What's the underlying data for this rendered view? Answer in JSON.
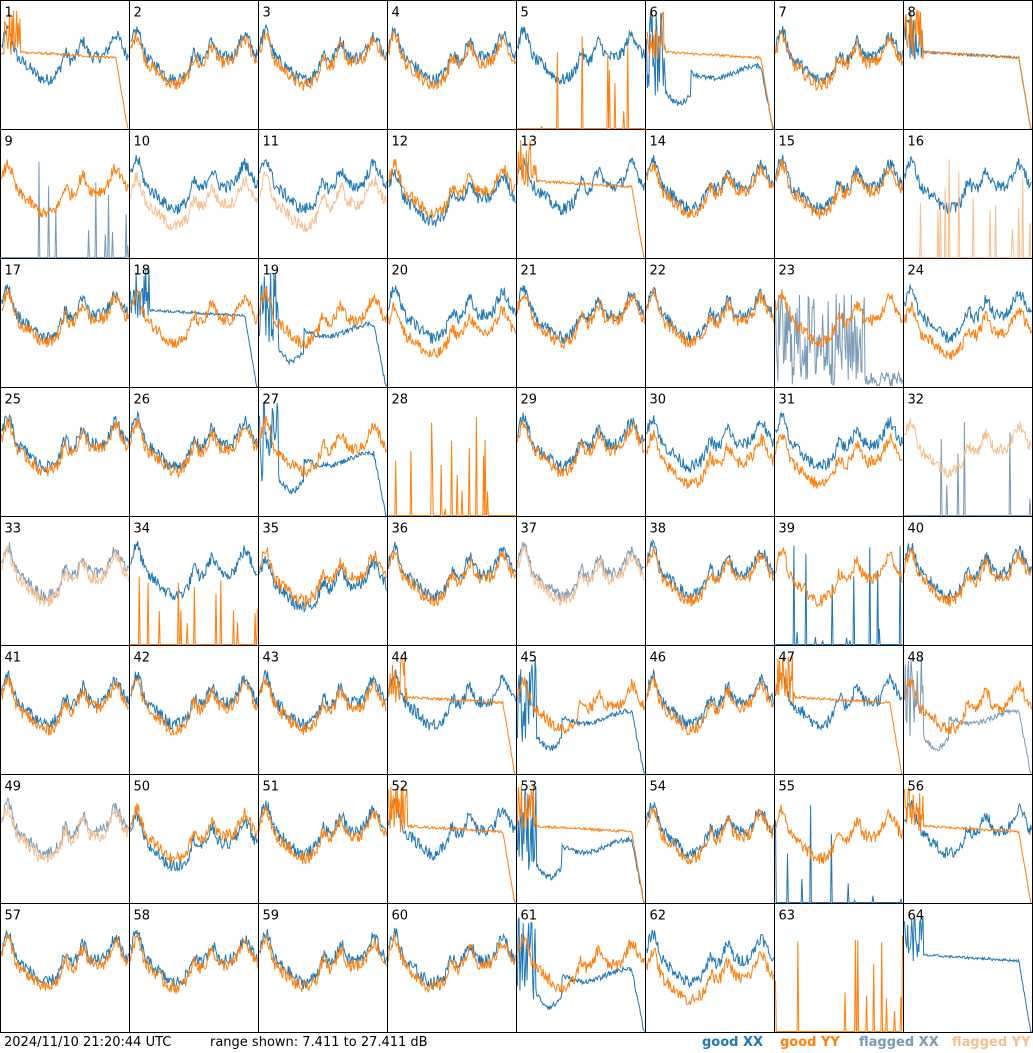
{
  "footer": {
    "timestamp": "2024/11/10 21:20:44 UTC",
    "range": "range shown: 7.411 to 27.411 dB"
  },
  "legend": [
    {
      "label": "good XX",
      "color": "#1f77b4"
    },
    {
      "label": "good YY",
      "color": "#ff7f0e"
    },
    {
      "label": "flagged XX",
      "color": "#7a9ab5"
    },
    {
      "label": "flagged YY",
      "color": "#f7bf8f"
    }
  ],
  "chart_data": {
    "type": "line",
    "ylim_db": [
      7.411,
      27.411
    ],
    "grid_rows": 8,
    "grid_cols": 8,
    "colors": {
      "good_xx": "#1f77b4",
      "good_yy": "#ff7f0e",
      "flagged_xx": "#7a9ab5",
      "flagged_yy": "#f7bf8f"
    },
    "tiles": [
      {
        "label": "1",
        "xx": "norm",
        "yy": "flat",
        "xx_flag": false,
        "yy_flag": false
      },
      {
        "label": "2",
        "xx": "norm",
        "yy": "norm",
        "xx_flag": false,
        "yy_flag": false
      },
      {
        "label": "3",
        "xx": "norm",
        "yy": "norm",
        "xx_flag": false,
        "yy_flag": false
      },
      {
        "label": "4",
        "xx": "norm",
        "yy": "norm",
        "xx_flag": false,
        "yy_flag": false
      },
      {
        "label": "5",
        "xx": "norm",
        "yy": "dead",
        "xx_flag": false,
        "yy_flag": false
      },
      {
        "label": "6",
        "xx": "dip",
        "yy": "flat",
        "xx_flag": false,
        "yy_flag": false
      },
      {
        "label": "7",
        "xx": "norm",
        "yy": "norm",
        "xx_flag": false,
        "yy_flag": false
      },
      {
        "label": "8",
        "xx": "flat",
        "yy": "flat",
        "xx_flag": false,
        "yy_flag": false
      },
      {
        "label": "9",
        "xx": "dead",
        "yy": "norm",
        "xx_flag": true,
        "yy_flag": false
      },
      {
        "label": "10",
        "xx": "norm",
        "yy": "low",
        "xx_flag": false,
        "yy_flag": true
      },
      {
        "label": "11",
        "xx": "norm",
        "yy": "low",
        "xx_flag": false,
        "yy_flag": true
      },
      {
        "label": "12",
        "xx": "low",
        "yy": "norm",
        "xx_flag": false,
        "yy_flag": false
      },
      {
        "label": "13",
        "xx": "norm",
        "yy": "flat",
        "xx_flag": false,
        "yy_flag": false
      },
      {
        "label": "14",
        "xx": "norm",
        "yy": "norm",
        "xx_flag": false,
        "yy_flag": false
      },
      {
        "label": "15",
        "xx": "norm",
        "yy": "norm",
        "xx_flag": false,
        "yy_flag": false
      },
      {
        "label": "16",
        "xx": "norm",
        "yy": "dead",
        "xx_flag": false,
        "yy_flag": true
      },
      {
        "label": "17",
        "xx": "norm",
        "yy": "norm",
        "xx_flag": false,
        "yy_flag": false
      },
      {
        "label": "18",
        "xx": "flat",
        "yy": "norm",
        "xx_flag": false,
        "yy_flag": false
      },
      {
        "label": "19",
        "xx": "dip",
        "yy": "norm",
        "xx_flag": false,
        "yy_flag": false
      },
      {
        "label": "20",
        "xx": "norm",
        "yy": "low",
        "xx_flag": false,
        "yy_flag": false
      },
      {
        "label": "21",
        "xx": "norm",
        "yy": "norm",
        "xx_flag": false,
        "yy_flag": false
      },
      {
        "label": "22",
        "xx": "norm",
        "yy": "norm",
        "xx_flag": false,
        "yy_flag": false
      },
      {
        "label": "23",
        "xx": "noisy",
        "yy": "norm",
        "xx_flag": true,
        "yy_flag": false
      },
      {
        "label": "24",
        "xx": "norm",
        "yy": "low",
        "xx_flag": false,
        "yy_flag": false
      },
      {
        "label": "25",
        "xx": "norm",
        "yy": "norm",
        "xx_flag": false,
        "yy_flag": false
      },
      {
        "label": "26",
        "xx": "norm",
        "yy": "norm",
        "xx_flag": false,
        "yy_flag": false
      },
      {
        "label": "27",
        "xx": "dip",
        "yy": "norm",
        "xx_flag": false,
        "yy_flag": false
      },
      {
        "label": "28",
        "xx": "none",
        "yy": "dead",
        "xx_flag": false,
        "yy_flag": false
      },
      {
        "label": "29",
        "xx": "norm",
        "yy": "norm",
        "xx_flag": false,
        "yy_flag": false
      },
      {
        "label": "30",
        "xx": "norm",
        "yy": "low",
        "xx_flag": false,
        "yy_flag": false
      },
      {
        "label": "31",
        "xx": "norm",
        "yy": "low",
        "xx_flag": false,
        "yy_flag": false
      },
      {
        "label": "32",
        "xx": "dead",
        "yy": "norm",
        "xx_flag": true,
        "yy_flag": true
      },
      {
        "label": "33",
        "xx": "norm",
        "yy": "norm",
        "xx_flag": true,
        "yy_flag": true
      },
      {
        "label": "34",
        "xx": "norm",
        "yy": "dead",
        "xx_flag": false,
        "yy_flag": false
      },
      {
        "label": "35",
        "xx": "low",
        "yy": "norm",
        "xx_flag": false,
        "yy_flag": false
      },
      {
        "label": "36",
        "xx": "norm",
        "yy": "norm",
        "xx_flag": false,
        "yy_flag": false
      },
      {
        "label": "37",
        "xx": "norm",
        "yy": "norm",
        "xx_flag": true,
        "yy_flag": true
      },
      {
        "label": "38",
        "xx": "norm",
        "yy": "norm",
        "xx_flag": false,
        "yy_flag": false
      },
      {
        "label": "39",
        "xx": "dead",
        "yy": "norm",
        "xx_flag": false,
        "yy_flag": false
      },
      {
        "label": "40",
        "xx": "norm",
        "yy": "norm",
        "xx_flag": false,
        "yy_flag": false
      },
      {
        "label": "41",
        "xx": "norm",
        "yy": "norm",
        "xx_flag": false,
        "yy_flag": false
      },
      {
        "label": "42",
        "xx": "norm",
        "yy": "norm",
        "xx_flag": false,
        "yy_flag": false
      },
      {
        "label": "43",
        "xx": "norm",
        "yy": "norm",
        "xx_flag": false,
        "yy_flag": false
      },
      {
        "label": "44",
        "xx": "norm",
        "yy": "flat",
        "xx_flag": false,
        "yy_flag": false
      },
      {
        "label": "45",
        "xx": "dip",
        "yy": "norm",
        "xx_flag": false,
        "yy_flag": false
      },
      {
        "label": "46",
        "xx": "norm",
        "yy": "norm",
        "xx_flag": false,
        "yy_flag": false
      },
      {
        "label": "47",
        "xx": "norm",
        "yy": "flat",
        "xx_flag": false,
        "yy_flag": false
      },
      {
        "label": "48",
        "xx": "dip",
        "yy": "norm",
        "xx_flag": true,
        "yy_flag": false
      },
      {
        "label": "49",
        "xx": "norm",
        "yy": "norm",
        "xx_flag": true,
        "yy_flag": true
      },
      {
        "label": "50",
        "xx": "low",
        "yy": "norm",
        "xx_flag": false,
        "yy_flag": false
      },
      {
        "label": "51",
        "xx": "norm",
        "yy": "norm",
        "xx_flag": false,
        "yy_flag": false
      },
      {
        "label": "52",
        "xx": "norm",
        "yy": "flat",
        "xx_flag": false,
        "yy_flag": false
      },
      {
        "label": "53",
        "xx": "dip",
        "yy": "flat",
        "xx_flag": false,
        "yy_flag": false
      },
      {
        "label": "54",
        "xx": "norm",
        "yy": "norm",
        "xx_flag": false,
        "yy_flag": false
      },
      {
        "label": "55",
        "xx": "dead",
        "yy": "norm",
        "xx_flag": false,
        "yy_flag": false
      },
      {
        "label": "56",
        "xx": "norm",
        "yy": "flat",
        "xx_flag": false,
        "yy_flag": false
      },
      {
        "label": "57",
        "xx": "norm",
        "yy": "norm",
        "xx_flag": false,
        "yy_flag": false
      },
      {
        "label": "58",
        "xx": "norm",
        "yy": "norm",
        "xx_flag": false,
        "yy_flag": false
      },
      {
        "label": "59",
        "xx": "norm",
        "yy": "norm",
        "xx_flag": false,
        "yy_flag": false
      },
      {
        "label": "60",
        "xx": "norm",
        "yy": "norm",
        "xx_flag": false,
        "yy_flag": false
      },
      {
        "label": "61",
        "xx": "dip",
        "yy": "norm",
        "xx_flag": false,
        "yy_flag": false
      },
      {
        "label": "62",
        "xx": "norm",
        "yy": "low",
        "xx_flag": false,
        "yy_flag": false
      },
      {
        "label": "63",
        "xx": "none",
        "yy": "dead",
        "xx_flag": false,
        "yy_flag": false
      },
      {
        "label": "64",
        "xx": "flat",
        "yy": "none",
        "xx_flag": false,
        "yy_flag": false
      }
    ]
  }
}
